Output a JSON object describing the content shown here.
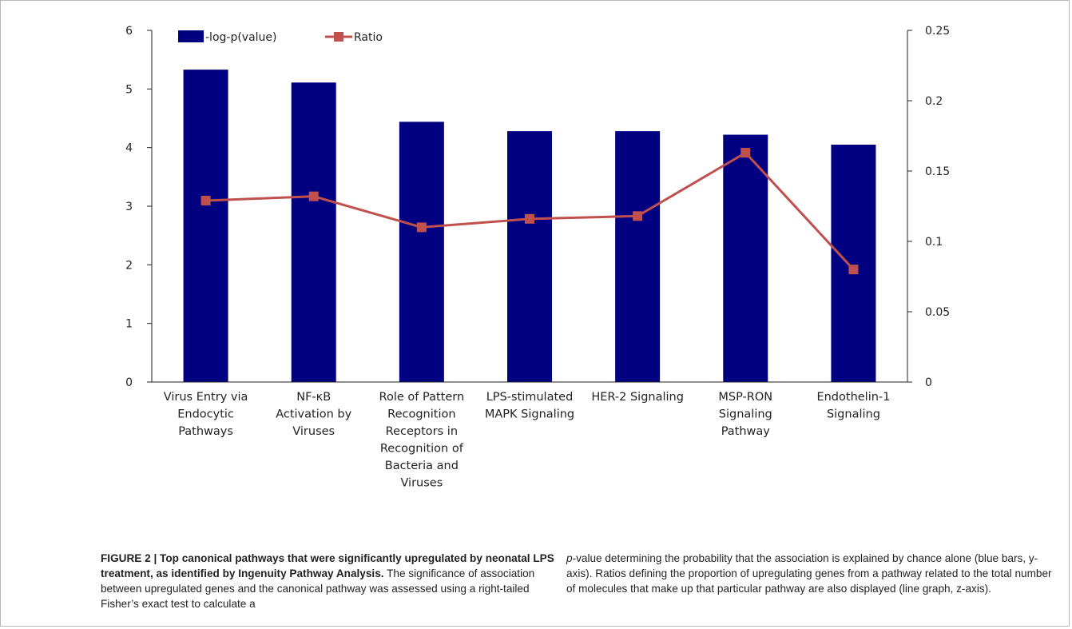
{
  "chart_data": {
    "type": "bar+line",
    "categories": [
      [
        "Virus Entry via",
        "Endocytic",
        "Pathways"
      ],
      [
        "NF-κB",
        "Activation by",
        "Viruses"
      ],
      [
        "Role of Pattern",
        "Recognition",
        "Receptors in",
        "Recognition of",
        "Bacteria and",
        "Viruses"
      ],
      [
        "LPS-stimulated",
        "MAPK Signaling"
      ],
      [
        "HER-2 Signaling"
      ],
      [
        "MSP-RON",
        "Signaling",
        "Pathway"
      ],
      [
        "Endothelin-1",
        "Signaling"
      ]
    ],
    "series": [
      {
        "name": "-log-p(value)",
        "type": "bar",
        "axis": "left",
        "color": "#000080",
        "values": [
          5.33,
          5.11,
          4.44,
          4.28,
          4.28,
          4.22,
          4.05
        ]
      },
      {
        "name": "Ratio",
        "type": "line",
        "axis": "right",
        "color": "#c0504d",
        "values": [
          0.129,
          0.132,
          0.11,
          0.116,
          0.118,
          0.163,
          0.08
        ]
      }
    ],
    "ylim_left": [
      0,
      6
    ],
    "yticks_left": [
      "0",
      "1",
      "2",
      "3",
      "4",
      "5",
      "6"
    ],
    "ylim_right": [
      0,
      0.25
    ],
    "yticks_right": [
      "0",
      "0.05",
      "0.1",
      "0.15",
      "0.2",
      "0.25"
    ],
    "legend_position": "top-left",
    "grid": false
  },
  "caption": {
    "label": "FIGURE 2 | Top canonical pathways that were significantly upregulated by neonatal LPS treatment, as identified by Ingenuity Pathway Analysis.",
    "left_text": "The significance of association between upregulated genes and the canonical pathway was assessed using a right-tailed Fisher’s exact test to calculate a",
    "p_italic": "p",
    "right_text": "-value determining the probability that the association is explained by chance alone (blue bars, y-axis). Ratios defining the proportion of upregulating genes from a pathway related to the total number of molecules that make up that particular pathway are also displayed (line graph, z-axis)."
  }
}
